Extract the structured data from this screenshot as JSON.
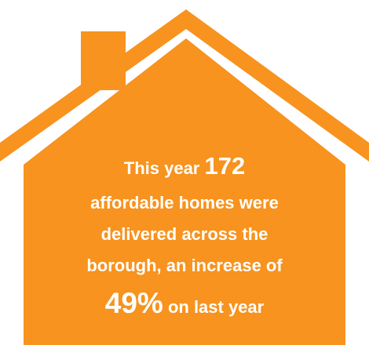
{
  "infographic": {
    "intro": "This year",
    "homes": "172",
    "body": [
      "affordable homes were",
      "delivered across the",
      "borough, an increase of"
    ],
    "increase": "49%",
    "outro": "on last year"
  }
}
